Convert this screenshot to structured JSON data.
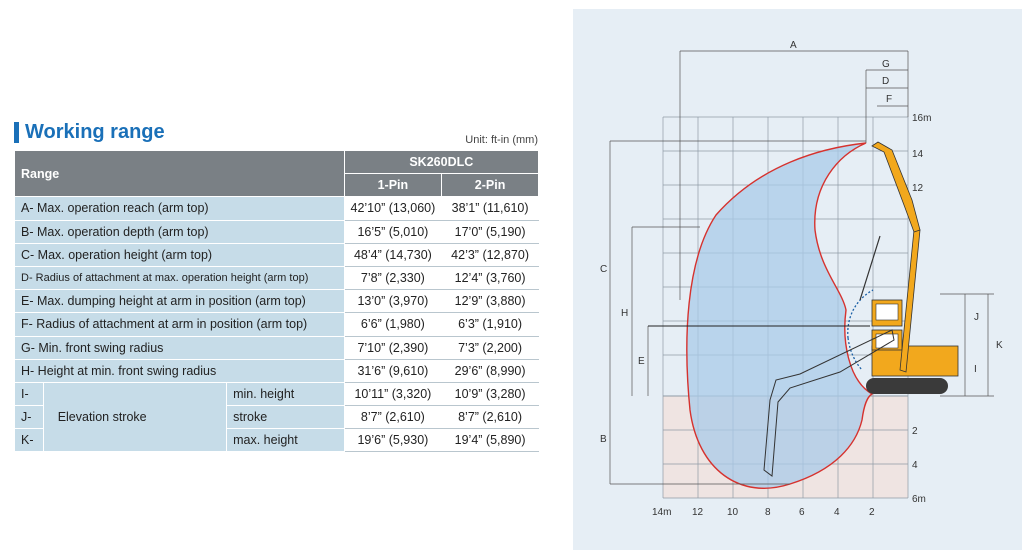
{
  "title": "Working range",
  "unit": "Unit: ft-in (mm)",
  "table": {
    "range_header": "Range",
    "model": "SK260DLC",
    "col1": "1-Pin",
    "col2": "2-Pin",
    "rows": [
      {
        "label": "A- Max. operation reach (arm top)",
        "v1": "42’10” (13,060)",
        "v2": "38’1” (11,610)"
      },
      {
        "label": "B- Max. operation depth (arm top)",
        "v1": "16’5” (5,010)",
        "v2": "17’0” (5,190)"
      },
      {
        "label": "C- Max. operation height (arm top)",
        "v1": "48’4” (14,730)",
        "v2": "42’3” (12,870)"
      },
      {
        "label": "D- Radius of attachment at max. operation height (arm top)",
        "v1": "7’8” (2,330)",
        "v2": "12’4” (3,760)"
      },
      {
        "label": "E- Max. dumping height at arm in position (arm top)",
        "v1": "13’0” (3,970)",
        "v2": "12’9” (3,880)"
      },
      {
        "label": "F- Radius of attachment at arm in position (arm top)",
        "v1": "6’6” (1,980)",
        "v2": "6’3” (1,910)"
      },
      {
        "label": "G- Min. front swing radius",
        "v1": "7’10” (2,390)",
        "v2": "7’3” (2,200)"
      },
      {
        "label": "H- Height at min. front swing radius",
        "v1": "31’6” (9,610)",
        "v2": "29’6” (8,990)"
      }
    ],
    "elevation_label": "Elevation stroke",
    "elevation_rows": [
      {
        "code": "I-",
        "sub": "min. height",
        "v1": "10’11” (3,320)",
        "v2": "10’9” (3,280)"
      },
      {
        "code": "J-",
        "sub": "stroke",
        "v1": "8’7” (2,610)",
        "v2": "8’7” (2,610)"
      },
      {
        "code": "K-",
        "sub": "max. height",
        "v1": "19’6” (5,930)",
        "v2": "19’4” (5,890)"
      }
    ]
  },
  "diagram": {
    "dim_labels": [
      "A",
      "G",
      "D",
      "F",
      "C",
      "H",
      "E",
      "B",
      "J",
      "I",
      "K"
    ],
    "right_ticks": [
      "16m",
      "14",
      "12",
      "2",
      "4",
      "6m"
    ],
    "bottom_ticks": [
      "14m",
      "12",
      "10",
      "8",
      "6",
      "4",
      "2"
    ],
    "colors": {
      "envelope": "#d6322e",
      "fill": "#a9cbe8",
      "machine": "#f2a81d",
      "background": "#e6eef5",
      "grid": "#8f9ba5",
      "title": "#1a70b8"
    }
  }
}
